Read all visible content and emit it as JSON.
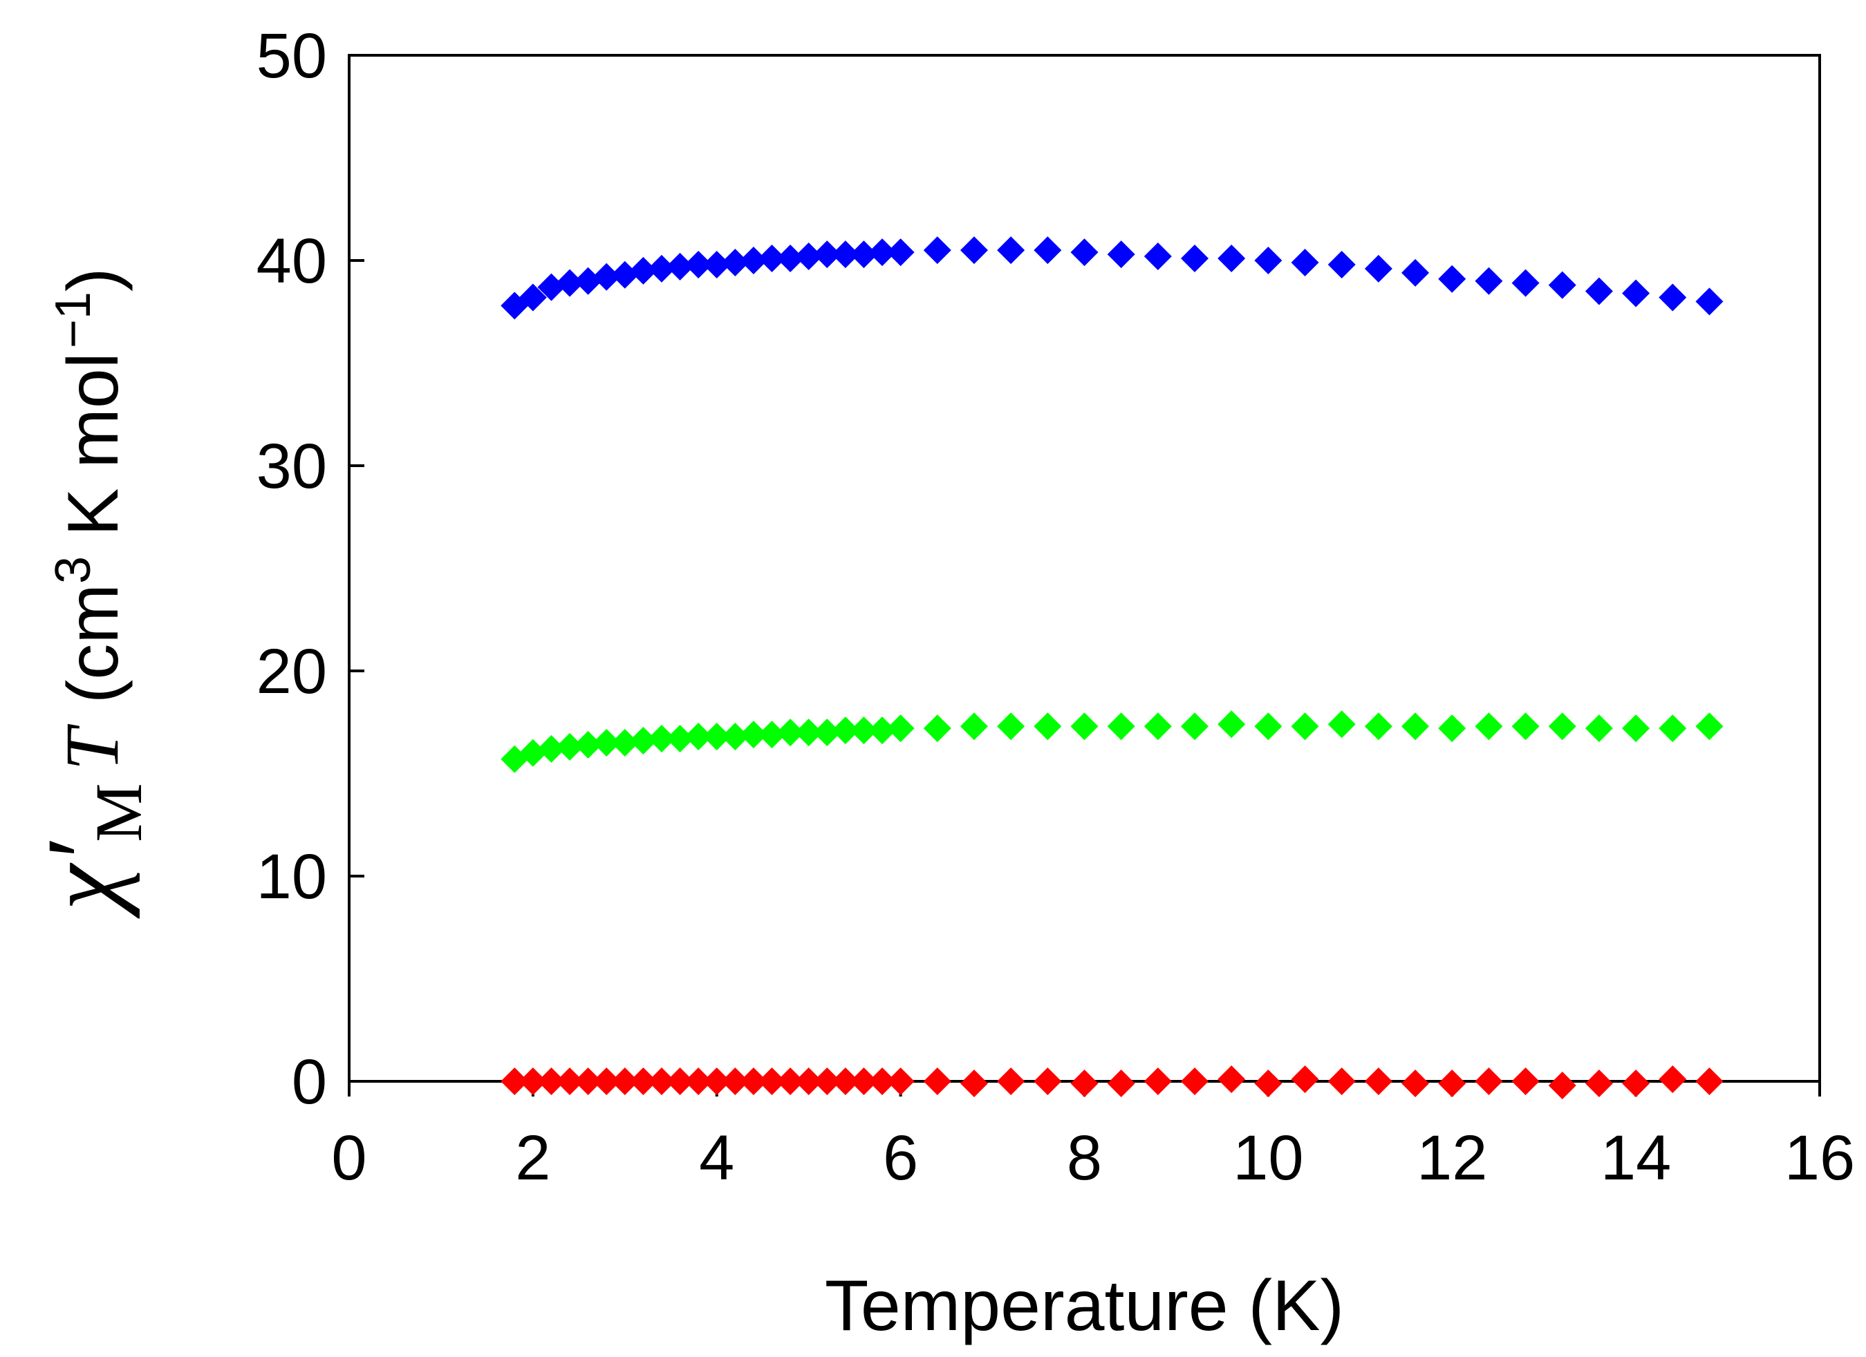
{
  "chart_data": {
    "type": "scatter",
    "title": "",
    "xlabel": "Temperature (K)",
    "ylabel": {
      "symbol": "χ′",
      "subscript": "M",
      "variable": "T",
      "units_open": "(cm",
      "units_power": "3",
      "units_mid": " K mol",
      "units_power2": "−1",
      "units_close": ")"
    },
    "xlim": [
      0,
      16
    ],
    "ylim": [
      0,
      50
    ],
    "xticks": [
      0,
      2,
      4,
      6,
      8,
      10,
      12,
      14,
      16
    ],
    "yticks": [
      0,
      10,
      20,
      30,
      40,
      50
    ],
    "grid": false,
    "marker": "diamond",
    "series": [
      {
        "name": "blue",
        "color": "#0000ff",
        "x": [
          1.8,
          2.0,
          2.2,
          2.4,
          2.6,
          2.8,
          3.0,
          3.2,
          3.4,
          3.6,
          3.8,
          4.0,
          4.2,
          4.4,
          4.6,
          4.8,
          5.0,
          5.2,
          5.4,
          5.6,
          5.8,
          6.0,
          6.4,
          6.8,
          7.2,
          7.6,
          8.0,
          8.4,
          8.8,
          9.2,
          9.6,
          10.0,
          10.4,
          10.8,
          11.2,
          11.6,
          12.0,
          12.4,
          12.8,
          13.2,
          13.6,
          14.0,
          14.4,
          14.8
        ],
        "y": [
          37.8,
          38.2,
          38.7,
          38.9,
          39.0,
          39.2,
          39.3,
          39.5,
          39.6,
          39.7,
          39.8,
          39.8,
          39.9,
          40.0,
          40.1,
          40.1,
          40.2,
          40.3,
          40.3,
          40.3,
          40.4,
          40.4,
          40.5,
          40.5,
          40.5,
          40.5,
          40.4,
          40.3,
          40.2,
          40.1,
          40.1,
          40.0,
          39.9,
          39.8,
          39.6,
          39.4,
          39.1,
          39.0,
          38.9,
          38.8,
          38.5,
          38.4,
          38.2,
          38.0
        ]
      },
      {
        "name": "green",
        "color": "#00ff00",
        "x": [
          1.8,
          2.0,
          2.2,
          2.4,
          2.6,
          2.8,
          3.0,
          3.2,
          3.4,
          3.6,
          3.8,
          4.0,
          4.2,
          4.4,
          4.6,
          4.8,
          5.0,
          5.2,
          5.4,
          5.6,
          5.8,
          6.0,
          6.4,
          6.8,
          7.2,
          7.6,
          8.0,
          8.4,
          8.8,
          9.2,
          9.6,
          10.0,
          10.4,
          10.8,
          11.2,
          11.6,
          12.0,
          12.4,
          12.8,
          13.2,
          13.6,
          14.0,
          14.4,
          14.8
        ],
        "y": [
          15.7,
          16.0,
          16.2,
          16.3,
          16.4,
          16.5,
          16.5,
          16.6,
          16.7,
          16.7,
          16.8,
          16.8,
          16.8,
          16.9,
          16.9,
          17.0,
          17.0,
          17.0,
          17.1,
          17.1,
          17.1,
          17.2,
          17.2,
          17.3,
          17.3,
          17.3,
          17.3,
          17.3,
          17.3,
          17.3,
          17.4,
          17.3,
          17.3,
          17.4,
          17.3,
          17.3,
          17.2,
          17.3,
          17.3,
          17.3,
          17.2,
          17.2,
          17.2,
          17.3
        ]
      },
      {
        "name": "red",
        "color": "#ff0000",
        "x": [
          1.8,
          2.0,
          2.2,
          2.4,
          2.6,
          2.8,
          3.0,
          3.2,
          3.4,
          3.6,
          3.8,
          4.0,
          4.2,
          4.4,
          4.6,
          4.8,
          5.0,
          5.2,
          5.4,
          5.6,
          5.8,
          6.0,
          6.4,
          6.8,
          7.2,
          7.6,
          8.0,
          8.4,
          8.8,
          9.2,
          9.6,
          10.0,
          10.4,
          10.8,
          11.2,
          11.6,
          12.0,
          12.4,
          12.8,
          13.2,
          13.6,
          14.0,
          14.4,
          14.8
        ],
        "y": [
          0.0,
          0.0,
          0.0,
          0.0,
          0.0,
          0.0,
          0.0,
          0.0,
          0.0,
          0.0,
          0.0,
          0.0,
          0.0,
          0.0,
          0.0,
          0.0,
          0.0,
          0.0,
          0.0,
          0.0,
          0.0,
          0.0,
          0.0,
          -0.1,
          0.0,
          0.0,
          -0.1,
          -0.1,
          0.0,
          0.0,
          0.1,
          -0.1,
          0.1,
          0.0,
          0.0,
          -0.1,
          -0.1,
          0.0,
          0.0,
          -0.2,
          -0.1,
          -0.1,
          0.1,
          0.0
        ]
      }
    ]
  }
}
